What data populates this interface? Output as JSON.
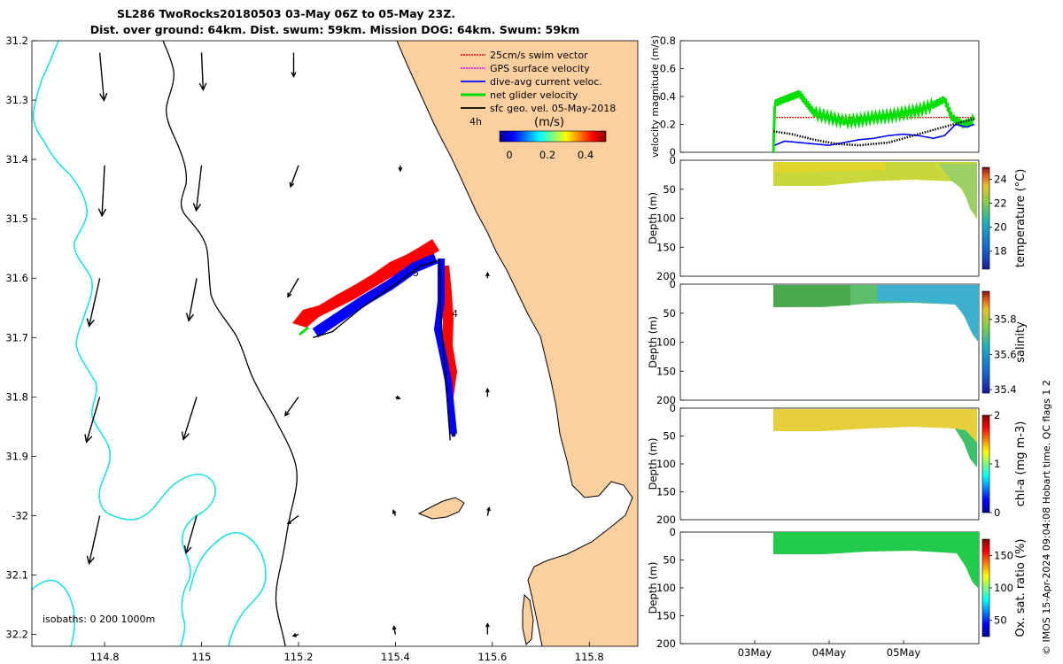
{
  "title": {
    "line1": "SL286 TwoRocks20180503 03-May 06Z to 05-May 23Z.",
    "line2": "Dist. over ground: 64km. Dist. swum: 59km. Mission DOG: 64km. Swum: 59km"
  },
  "colors": {
    "land": "#fbcf9e",
    "isobath_shallow": "#000000",
    "isobath_deep": "#22e0e0",
    "swim": "#ff0000",
    "gps": "#ff00ff",
    "dive_avg": "#0000ff",
    "net": "#00e000",
    "geo": "#000000"
  },
  "chart_data": [
    {
      "id": "map",
      "type": "map",
      "xlim": [
        114.65,
        115.9
      ],
      "ylim": [
        -32.22,
        -31.2
      ],
      "x_ticks": [
        114.8,
        115,
        115.2,
        115.4,
        115.6,
        115.8
      ],
      "x_tick_labels": [
        "114.8",
        "115",
        "115.2",
        "115.4",
        "115.6",
        "115.8"
      ],
      "y_ticks": [
        -31.2,
        -31.3,
        -31.4,
        -31.5,
        -31.6,
        -31.7,
        -31.8,
        -31.9,
        -32,
        -32.1,
        -32.2
      ],
      "y_tick_labels": [
        "31.2",
        "31.3",
        "31.4",
        "31.5",
        "31.6",
        "31.7",
        "31.8",
        "31.9",
        "-32",
        "32.1",
        "32.2"
      ],
      "legend": {
        "entries": [
          "25cm/s swim vector",
          "GPS surface velocity",
          "dive-avg current veloc.",
          "net glider velocity",
          "sfc geo. vel. 05-May-2018"
        ],
        "colorbar_title": "(m/s)",
        "colorbar_ticks": [
          "0",
          "0.2",
          "0.4"
        ],
        "time_marker": "4h"
      },
      "isobaths_label": "isobaths: 0   200  1000m",
      "track_day_labels": [
        "5",
        "4"
      ],
      "glider_track": [
        [
          115.513,
          -31.873
        ],
        [
          115.508,
          -31.82
        ],
        [
          115.503,
          -31.76
        ],
        [
          115.497,
          -31.7
        ],
        [
          115.493,
          -31.65
        ],
        [
          115.493,
          -31.6
        ],
        [
          115.49,
          -31.57
        ],
        [
          115.45,
          -31.58
        ],
        [
          115.4,
          -31.61
        ],
        [
          115.33,
          -31.65
        ],
        [
          115.27,
          -31.69
        ],
        [
          115.23,
          -31.7
        ]
      ],
      "geo_vectors": [
        {
          "lon": 114.79,
          "lat": -31.22,
          "u": 0.08,
          "v": -0.9
        },
        {
          "lon": 115.0,
          "lat": -31.22,
          "u": 0.03,
          "v": -0.7
        },
        {
          "lon": 115.19,
          "lat": -31.22,
          "u": 0.0,
          "v": -0.45
        },
        {
          "lon": 114.8,
          "lat": -31.41,
          "u": -0.05,
          "v": -0.95
        },
        {
          "lon": 115.0,
          "lat": -31.41,
          "u": -0.1,
          "v": -0.85
        },
        {
          "lon": 115.2,
          "lat": -31.41,
          "u": -0.15,
          "v": -0.4
        },
        {
          "lon": 115.41,
          "lat": -31.41,
          "u": 0.0,
          "v": -0.1
        },
        {
          "lon": 114.79,
          "lat": -31.6,
          "u": -0.2,
          "v": -0.9
        },
        {
          "lon": 114.99,
          "lat": -31.6,
          "u": -0.15,
          "v": -0.8
        },
        {
          "lon": 115.2,
          "lat": -31.6,
          "u": -0.2,
          "v": -0.35
        },
        {
          "lon": 115.59,
          "lat": -31.6,
          "u": 0.0,
          "v": 0.1
        },
        {
          "lon": 114.79,
          "lat": -31.8,
          "u": -0.25,
          "v": -0.85
        },
        {
          "lon": 114.99,
          "lat": -31.8,
          "u": -0.25,
          "v": -0.8
        },
        {
          "lon": 115.2,
          "lat": -31.8,
          "u": -0.25,
          "v": -0.35
        },
        {
          "lon": 115.4,
          "lat": -31.8,
          "u": 0.08,
          "v": -0.03
        },
        {
          "lon": 115.59,
          "lat": -31.8,
          "u": 0.0,
          "v": 0.15
        },
        {
          "lon": 114.79,
          "lat": -32.0,
          "u": -0.2,
          "v": -0.9
        },
        {
          "lon": 114.99,
          "lat": -32.0,
          "u": -0.2,
          "v": -0.7
        },
        {
          "lon": 115.2,
          "lat": -32.0,
          "u": -0.2,
          "v": -0.15
        },
        {
          "lon": 115.4,
          "lat": -32.0,
          "u": -0.04,
          "v": 0.1
        },
        {
          "lon": 115.59,
          "lat": -32.0,
          "u": 0.03,
          "v": 0.15
        },
        {
          "lon": 115.2,
          "lat": -32.2,
          "u": -0.1,
          "v": -0.03
        },
        {
          "lon": 115.4,
          "lat": -32.2,
          "u": -0.03,
          "v": 0.15
        },
        {
          "lon": 115.59,
          "lat": -32.2,
          "u": 0.0,
          "v": 0.2
        }
      ]
    },
    {
      "id": "velocity",
      "type": "line",
      "ylabel": "velocity magnitude (m/s)",
      "ylim": [
        0,
        0.8
      ],
      "y_ticks": [
        "0",
        "0.2",
        "0.4",
        "0.6",
        "0.8"
      ],
      "x_ticks": [
        "03May",
        "04May",
        "05May"
      ],
      "series": [
        {
          "name": "swim",
          "values": [
            [
              3.25,
              0.25
            ],
            [
              4.0,
              0.25
            ],
            [
              5.0,
              0.25
            ],
            [
              5.95,
              0.25
            ]
          ]
        },
        {
          "name": "net glider velocity",
          "values": [
            [
              3.25,
              0.0
            ],
            [
              3.27,
              0.35
            ],
            [
              3.4,
              0.38
            ],
            [
              3.5,
              0.4
            ],
            [
              3.6,
              0.42
            ],
            [
              3.7,
              0.35
            ],
            [
              3.8,
              0.28
            ],
            [
              4.0,
              0.25
            ],
            [
              4.2,
              0.22
            ],
            [
              4.4,
              0.23
            ],
            [
              4.6,
              0.25
            ],
            [
              4.8,
              0.26
            ],
            [
              5.0,
              0.28
            ],
            [
              5.2,
              0.3
            ],
            [
              5.4,
              0.34
            ],
            [
              5.55,
              0.38
            ],
            [
              5.65,
              0.25
            ],
            [
              5.8,
              0.2
            ],
            [
              5.95,
              0.23
            ]
          ]
        },
        {
          "name": "dive-avg current",
          "values": [
            [
              3.27,
              0.05
            ],
            [
              3.4,
              0.08
            ],
            [
              3.6,
              0.07
            ],
            [
              3.8,
              0.06
            ],
            [
              4.0,
              0.05
            ],
            [
              4.2,
              0.07
            ],
            [
              4.4,
              0.09
            ],
            [
              4.6,
              0.1
            ],
            [
              4.8,
              0.12
            ],
            [
              5.0,
              0.13
            ],
            [
              5.2,
              0.12
            ],
            [
              5.4,
              0.1
            ],
            [
              5.55,
              0.12
            ],
            [
              5.7,
              0.2
            ],
            [
              5.85,
              0.18
            ],
            [
              5.95,
              0.2
            ]
          ]
        },
        {
          "name": "geostrophic",
          "values": [
            [
              3.25,
              0.15
            ],
            [
              3.5,
              0.13
            ],
            [
              3.8,
              0.09
            ],
            [
              4.1,
              0.06
            ],
            [
              4.4,
              0.05
            ],
            [
              4.8,
              0.07
            ],
            [
              5.2,
              0.13
            ],
            [
              5.6,
              0.19
            ],
            [
              5.95,
              0.24
            ]
          ]
        }
      ]
    },
    {
      "id": "temperature",
      "type": "heatmap",
      "ylabel": "Depth (m)",
      "ylim": [
        200,
        0
      ],
      "y_ticks": [
        "0",
        "50",
        "100",
        "150",
        "200"
      ],
      "colorbar_label": "temperature (°C)",
      "colorbar_ticks": [
        "18",
        "20",
        "22",
        "24"
      ],
      "crange": [
        16.5,
        25
      ]
    },
    {
      "id": "salinity",
      "type": "heatmap",
      "ylabel": "Depth (m)",
      "ylim": [
        200,
        0
      ],
      "y_ticks": [
        "0",
        "50",
        "100",
        "150",
        "200"
      ],
      "colorbar_label": "salinity",
      "colorbar_ticks": [
        "35.4",
        "35.6",
        "35.8"
      ],
      "crange": [
        35.38,
        35.96
      ]
    },
    {
      "id": "chla",
      "type": "heatmap",
      "ylabel": "Depth (m)",
      "ylim": [
        200,
        0
      ],
      "y_ticks": [
        "0",
        "50",
        "100",
        "150",
        "200"
      ],
      "colorbar_label": "chl-a (mg m-3)",
      "colorbar_ticks": [
        "0",
        "1",
        "2"
      ],
      "crange": [
        0,
        2
      ]
    },
    {
      "id": "oxygen",
      "type": "heatmap",
      "ylabel": "Depth (m)",
      "ylim": [
        200,
        0
      ],
      "y_ticks": [
        "0",
        "50",
        "100",
        "150",
        "200"
      ],
      "colorbar_label": "Ox. sat. ratio (%)",
      "colorbar_ticks": [
        "50",
        "100",
        "150"
      ],
      "crange": [
        25,
        175
      ]
    }
  ],
  "credit": "© IMOS 15-Apr-2024 09:04:08 Hobart time. QC flags 1  2"
}
